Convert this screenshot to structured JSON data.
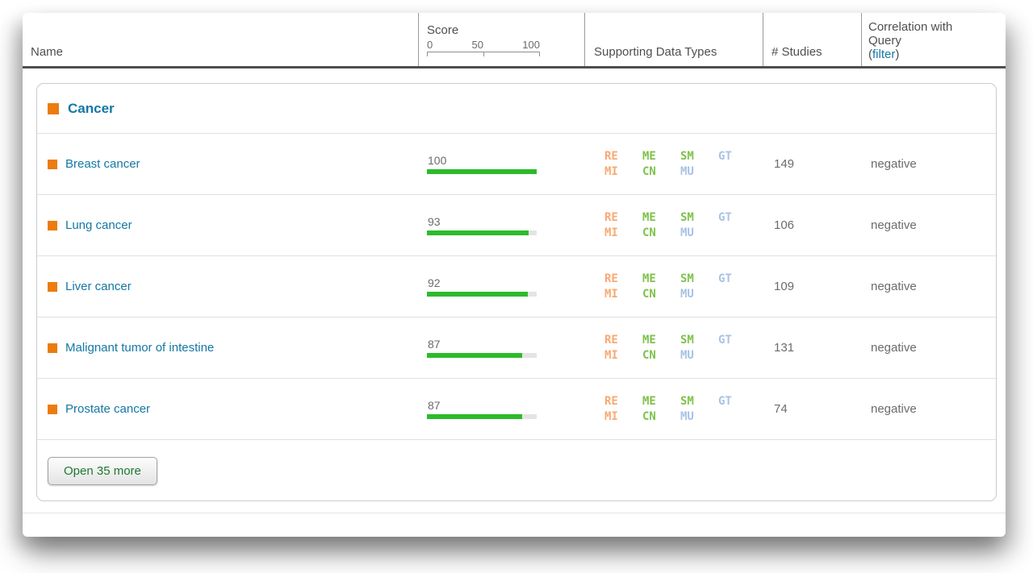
{
  "colors": {
    "accent-teal": "#1477A4",
    "orange-square": "#EC7C0D",
    "bar-green": "#2CBB2C",
    "bar-track": "#E4E4E4",
    "type-orange": "#F9A972",
    "type-green": "#7EC24B",
    "type-blue": "#A8C3E5",
    "button-green": "#1C7A30",
    "text-gray": "#6B6B6B",
    "header-gray": "#4F4F4F",
    "header-border": "#4E4E4E",
    "col-sep": "#9A9A9A",
    "panel-border": "#CBCBCB",
    "row-sep": "#E1E1E1"
  },
  "header": {
    "name_label": "Name",
    "score_label": "Score",
    "score_ticks": {
      "t0": "0",
      "t50": "50",
      "t100": "100"
    },
    "types_label": "Supporting Data Types",
    "studies_label": "# Studies",
    "correlation_line1": "Correlation with",
    "correlation_line2": "Query",
    "filter_prefix": "(",
    "filter_link": "filter",
    "filter_suffix": ")"
  },
  "group": {
    "label": "Cancer"
  },
  "data_types": [
    {
      "code": "RE",
      "color": "orange"
    },
    {
      "code": "ME",
      "color": "green"
    },
    {
      "code": "SM",
      "color": "green"
    },
    {
      "code": "GT",
      "color": "blue"
    },
    {
      "code": "MI",
      "color": "orange"
    },
    {
      "code": "CN",
      "color": "green"
    },
    {
      "code": "MU",
      "color": "blue"
    }
  ],
  "rows": [
    {
      "name": "Breast cancer",
      "score": 100,
      "score_display": "100",
      "studies": "149",
      "correlation": "negative"
    },
    {
      "name": "Lung cancer",
      "score": 93,
      "score_display": "93",
      "studies": "106",
      "correlation": "negative"
    },
    {
      "name": "Liver cancer",
      "score": 92,
      "score_display": "92",
      "studies": "109",
      "correlation": "negative"
    },
    {
      "name": "Malignant tumor of intestine",
      "score": 87,
      "score_display": "87",
      "studies": "131",
      "correlation": "negative"
    },
    {
      "name": "Prostate cancer",
      "score": 87,
      "score_display": "87",
      "studies": "74",
      "correlation": "negative"
    }
  ],
  "footer": {
    "open_more_label": "Open 35 more"
  }
}
